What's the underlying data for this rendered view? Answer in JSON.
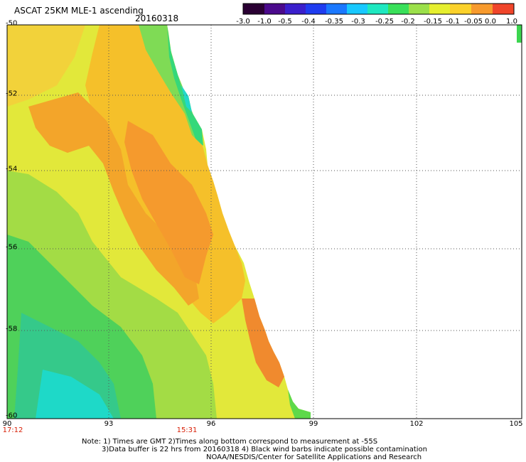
{
  "header": {
    "title": "ASCAT 25KM MLE-1 ascending",
    "date": "20160318"
  },
  "colorbar": {
    "labels": [
      "-3.0",
      "-1.0",
      "-0.5",
      "-0.4",
      "-0.35",
      "-0.3",
      "-0.25",
      "-0.2",
      "-0.15",
      "-0.1",
      "-0.05",
      "0.0",
      "1.0"
    ],
    "colors": [
      "#2a0033",
      "#4b0a8c",
      "#3a1fcc",
      "#1f3cf0",
      "#1a78ff",
      "#18c8ff",
      "#1ee8c0",
      "#39e05a",
      "#9be04a",
      "#e6ef2f",
      "#fbd12a",
      "#f79a2d",
      "#f0452a"
    ]
  },
  "map": {
    "lat_labels": [
      "-50",
      "-52",
      "-54",
      "-56",
      "-58",
      "-60"
    ],
    "lon_labels": [
      "90",
      "93",
      "96",
      "99",
      "102",
      "105"
    ],
    "time_labels": [
      {
        "text": "17:12",
        "color": "#d81e05"
      },
      {
        "text": "15:31",
        "color": "#d81e05"
      }
    ]
  },
  "notes": {
    "line1": "Note: 1) Times are GMT 2)Times along bottom correspond to measurement at -55S",
    "line2": "3)Data buffer is 22 hrs from 20160318 4) Black wind barbs indicate possible contamination",
    "line3": "NOAA/NESDIS/Center for Satellite Applications and Research"
  }
}
